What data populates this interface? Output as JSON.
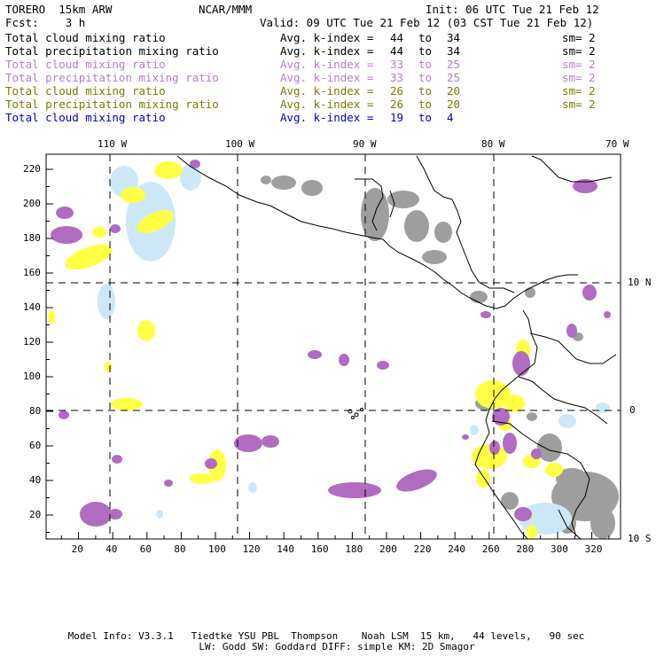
{
  "header": {
    "left_line1": "TORERO  15km ARW",
    "center_line1": "NCAR/MMM",
    "right_line1": "Init: 06 UTC Tue 21 Feb 12",
    "left_line2": "Fcst:    3 h",
    "right_line2": "Valid: 09 UTC Tue 21 Feb 12 (03 CST Tue 21 Feb 12)"
  },
  "legend": [
    {
      "field": "Total cloud mixing ratio",
      "kidx": "Avg. k-index =",
      "hi": "44",
      "to": "to",
      "lo": "34",
      "sm": "sm= 2",
      "color": "#000000"
    },
    {
      "field": "Total precipitation mixing ratio",
      "kidx": "Avg. k-index =",
      "hi": "44",
      "to": "to",
      "lo": "34",
      "sm": "sm= 2",
      "color": "#000000"
    },
    {
      "field": "Total cloud mixing ratio",
      "kidx": "Avg. k-index =",
      "hi": "33",
      "to": "to",
      "lo": "25",
      "sm": "sm= 2",
      "color": "#b87cc8"
    },
    {
      "field": "Total precipitation mixing ratio",
      "kidx": "Avg. k-index =",
      "hi": "33",
      "to": "to",
      "lo": "25",
      "sm": "sm= 2",
      "color": "#b87cc8"
    },
    {
      "field": "Total cloud mixing ratio",
      "kidx": "Avg. k-index =",
      "hi": "26",
      "to": "to",
      "lo": "20",
      "sm": "sm= 2",
      "color": "#7a7a00"
    },
    {
      "field": "Total precipitation mixing ratio",
      "kidx": "Avg. k-index =",
      "hi": "26",
      "to": "to",
      "lo": "20",
      "sm": "sm= 2",
      "color": "#7a7a00"
    },
    {
      "field": "Total cloud mixing ratio",
      "kidx": "Avg. k-index =",
      "hi": "19",
      "to": "to",
      "lo": "4",
      "sm": "",
      "color": "#0000cc"
    }
  ],
  "map": {
    "lon_labels": [
      "110 W",
      "100 W",
      "90 W",
      "80 W",
      "70 W"
    ],
    "lat_labels": [
      "10 N",
      "0",
      "10 S"
    ],
    "x_ticks": [
      "20",
      "40",
      "60",
      "80",
      "100",
      "120",
      "140",
      "160",
      "180",
      "200",
      "220",
      "240",
      "260",
      "280",
      "300",
      "320"
    ],
    "y_ticks": [
      "220",
      "200",
      "180",
      "160",
      "140",
      "120",
      "100",
      "80",
      "60",
      "40",
      "20"
    ],
    "colors": {
      "gray": "#9e9e9e",
      "purple": "#b06cc0",
      "yellow": "#ffff44",
      "lightblue": "#cce8f8"
    }
  },
  "footer": {
    "line1": "Model Info: V3.3.1   Tiedtke YSU PBL  Thompson    Noah LSM  15 km,   44 levels,   90 sec",
    "line2": "LW: Godd SW: Goddard DIFF: simple KM: 2D Smagor"
  }
}
